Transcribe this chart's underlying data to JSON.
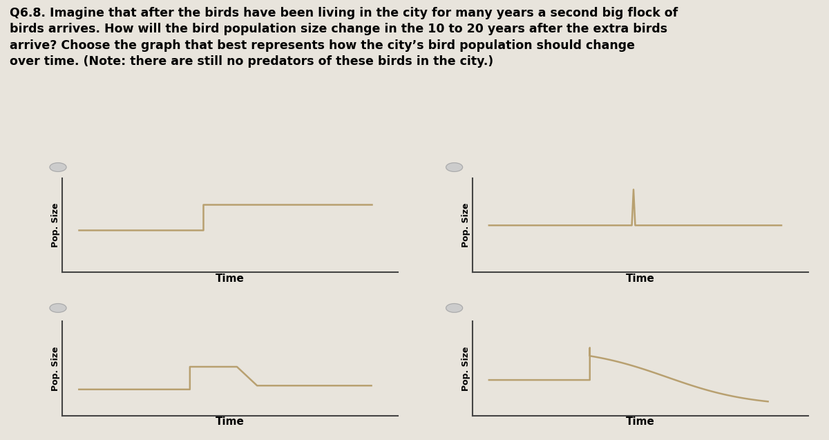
{
  "title_line1": "Q6.8. Imagine that after the birds have been living in the city for many years a second big flock of",
  "title_line2": "birds arrives. How will the bird population size change in the 10 to 20 years after the extra birds",
  "title_line3": "arrive? Choose the graph that best represents how the city’s bird population should change",
  "title_line4": "over time. (Note: there are still no predators of these birds in the city.)",
  "title_fontsize": 12.5,
  "title_fontweight": "bold",
  "axis_label": "Pop. Size",
  "xlabel": "Time",
  "line_color": "#b8a070",
  "axis_color": "#444444",
  "background_color": "#e8e4dc",
  "radio_color": "#cccccc",
  "radio_edge_color": "#aaaaaa",
  "fig_background": "#e8e4dc",
  "grid_line_color": "#d0ccc4"
}
